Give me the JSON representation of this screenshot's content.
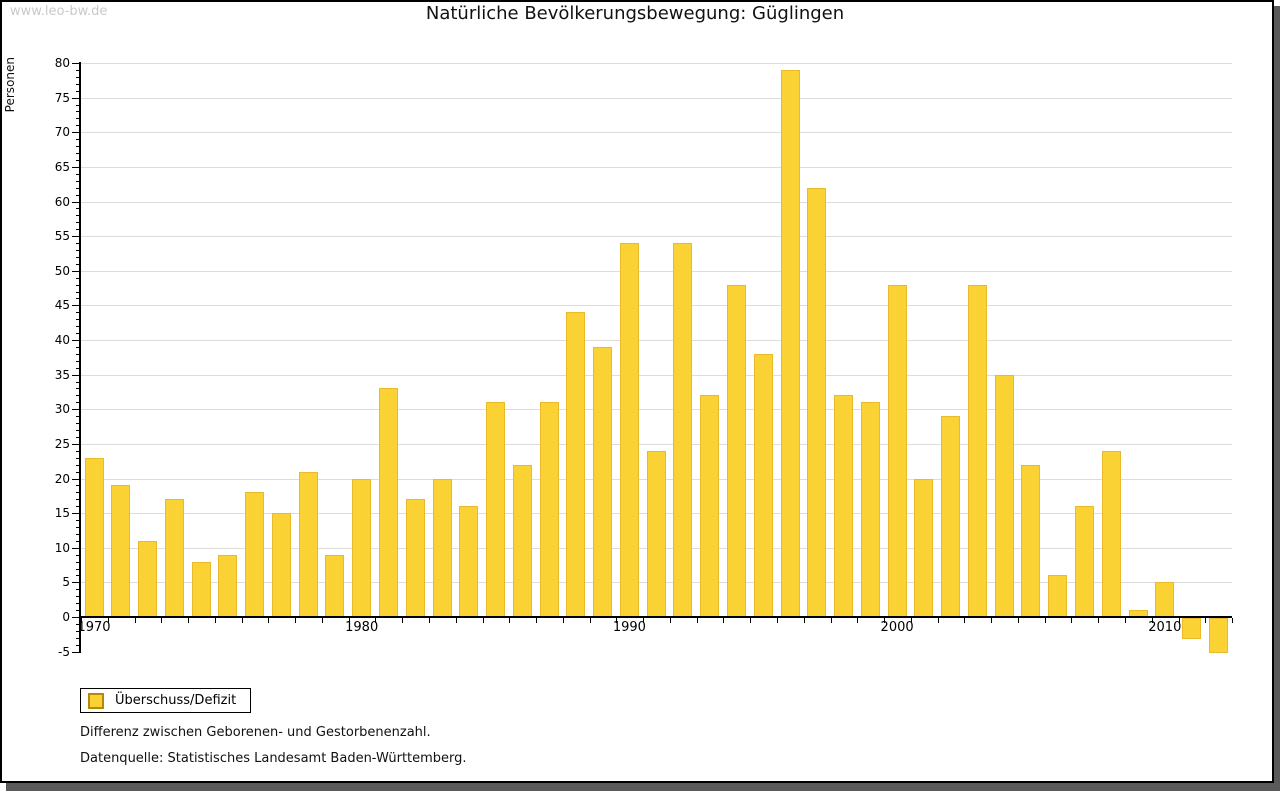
{
  "page": {
    "watermark": "www.leo-bw.de"
  },
  "chart_data": {
    "type": "bar",
    "title": "Natürliche Bevölkerungsbewegung: Güglingen",
    "xlabel": "",
    "ylabel": "Personen",
    "series_name": "Überschuss/Defizit",
    "categories": [
      1970,
      1971,
      1972,
      1973,
      1974,
      1975,
      1976,
      1977,
      1978,
      1979,
      1980,
      1981,
      1982,
      1983,
      1984,
      1985,
      1986,
      1987,
      1988,
      1989,
      1990,
      1991,
      1992,
      1993,
      1994,
      1995,
      1996,
      1997,
      1998,
      1999,
      2000,
      2001,
      2002,
      2003,
      2004,
      2005,
      2006,
      2007,
      2008,
      2009,
      2010,
      2011,
      2012
    ],
    "values": [
      23,
      19,
      11,
      17,
      8,
      9,
      18,
      15,
      21,
      9,
      20,
      33,
      17,
      20,
      16,
      31,
      22,
      31,
      44,
      39,
      54,
      24,
      54,
      32,
      48,
      38,
      79,
      62,
      32,
      31,
      48,
      20,
      29,
      48,
      35,
      22,
      6,
      16,
      24,
      1,
      5,
      -3,
      -5
    ],
    "ylim": [
      -5,
      80
    ],
    "ytick_step": 5,
    "ytick_minor_step": 1,
    "xtick_labeled_years": [
      1970,
      1980,
      1990,
      2000,
      2010
    ],
    "grid": true,
    "legend_position": "bottom-left",
    "colors": {
      "bar_fill": "#FBD233",
      "bar_border": "#EAB92C",
      "grid_line": "#DCDCDC",
      "axis": "#000000",
      "watermark_text": "#C9C9C9",
      "frame_shadow": "#5A5A5A"
    }
  },
  "notes": {
    "line1": "Differenz zwischen Geborenen- und Gestorbenenzahl.",
    "line2": "Datenquelle: Statistisches Landesamt Baden-Württemberg."
  }
}
